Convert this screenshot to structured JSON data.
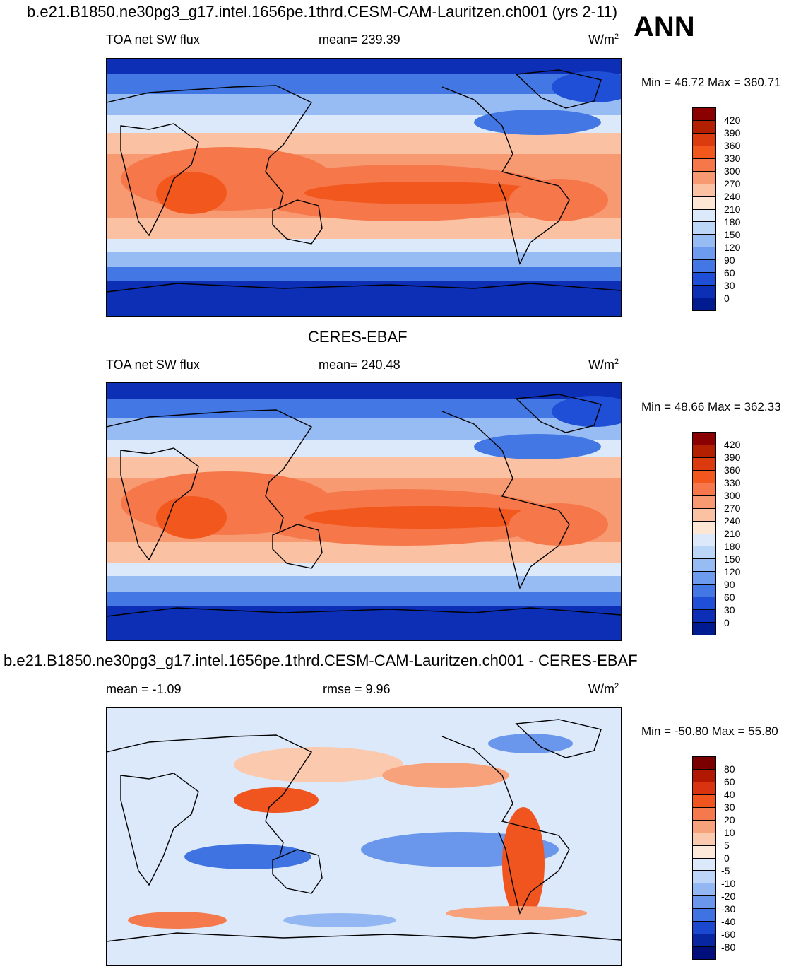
{
  "header": {
    "case_title": "b.e21.B1850.ne30pg3_g17.intel.1656pe.1thrd.CESM-CAM-Lauritzen.ch001 (yrs 2-11)",
    "season": "ANN"
  },
  "panels": [
    {
      "label_left": "TOA net SW flux",
      "label_mid": "mean= 239.39",
      "units": "W/m",
      "units_sup": "2",
      "minmax": "Min =  46.72 Max = 360.71",
      "colorbar": [
        "420",
        "390",
        "360",
        "330",
        "300",
        "270",
        "240",
        "210",
        "180",
        "150",
        "120",
        "90",
        "60",
        "30",
        "0"
      ]
    },
    {
      "title": "CERES-EBAF",
      "label_left": "TOA net SW flux",
      "label_mid": "mean= 240.48",
      "units": "W/m",
      "units_sup": "2",
      "minmax": "Min =  48.66 Max = 362.33",
      "colorbar": [
        "420",
        "390",
        "360",
        "330",
        "300",
        "270",
        "240",
        "210",
        "180",
        "150",
        "120",
        "90",
        "60",
        "30",
        "0"
      ]
    },
    {
      "title": "b.e21.B1850.ne30pg3_g17.intel.1656pe.1thrd.CESM-CAM-Lauritzen.ch001 - CERES-EBAF",
      "label_left": "mean =  -1.09",
      "label_mid": "rmse =   9.96",
      "units": "W/m",
      "units_sup": "2",
      "minmax": "Min = -50.80 Max =  55.80",
      "colorbar": [
        "80",
        "60",
        "40",
        "30",
        "20",
        "10",
        "5",
        "0",
        "-5",
        "-10",
        "-20",
        "-30",
        "-40",
        "-60",
        "-80"
      ]
    }
  ],
  "colors": {
    "flux_scale": [
      "#8b0000",
      "#b22000",
      "#dc3a0f",
      "#f2581e",
      "#f5774a",
      "#f79a72",
      "#fac2a2",
      "#fde6d4",
      "#dbe9fa",
      "#bcd6f8",
      "#97bcf4",
      "#6d9cee",
      "#4277e4",
      "#1e4fd6",
      "#0c2fb5",
      "#001a8f"
    ],
    "diff_scale": [
      "#7a0000",
      "#b21800",
      "#d93310",
      "#f0541f",
      "#f47a4d",
      "#f8a27c",
      "#fbc9ad",
      "#fde8da",
      "#dce9fb",
      "#bcd5f8",
      "#93b7f2",
      "#6a97eb",
      "#3f73e1",
      "#1a49cf",
      "#07269f",
      "#000f7a"
    ]
  },
  "chart_data": [
    {
      "type": "heatmap",
      "title": "TOA net SW flux",
      "units": "W/m2",
      "mean": 239.39,
      "min": 46.72,
      "max": 360.71,
      "colorbar_levels": [
        0,
        30,
        60,
        90,
        120,
        150,
        180,
        210,
        240,
        270,
        300,
        330,
        360,
        390,
        420
      ]
    },
    {
      "type": "heatmap",
      "title": "CERES-EBAF TOA net SW flux",
      "units": "W/m2",
      "mean": 240.48,
      "min": 48.66,
      "max": 362.33,
      "colorbar_levels": [
        0,
        30,
        60,
        90,
        120,
        150,
        180,
        210,
        240,
        270,
        300,
        330,
        360,
        390,
        420
      ]
    },
    {
      "type": "heatmap",
      "title": "b.e21.B1850.ne30pg3_g17.intel.1656pe.1thrd.CESM-CAM-Lauritzen.ch001 - CERES-EBAF",
      "units": "W/m2",
      "mean": -1.09,
      "rmse": 9.96,
      "min": -50.8,
      "max": 55.8,
      "colorbar_levels": [
        -80,
        -60,
        -40,
        -30,
        -20,
        -10,
        -5,
        0,
        5,
        10,
        20,
        30,
        40,
        60,
        80
      ]
    }
  ]
}
